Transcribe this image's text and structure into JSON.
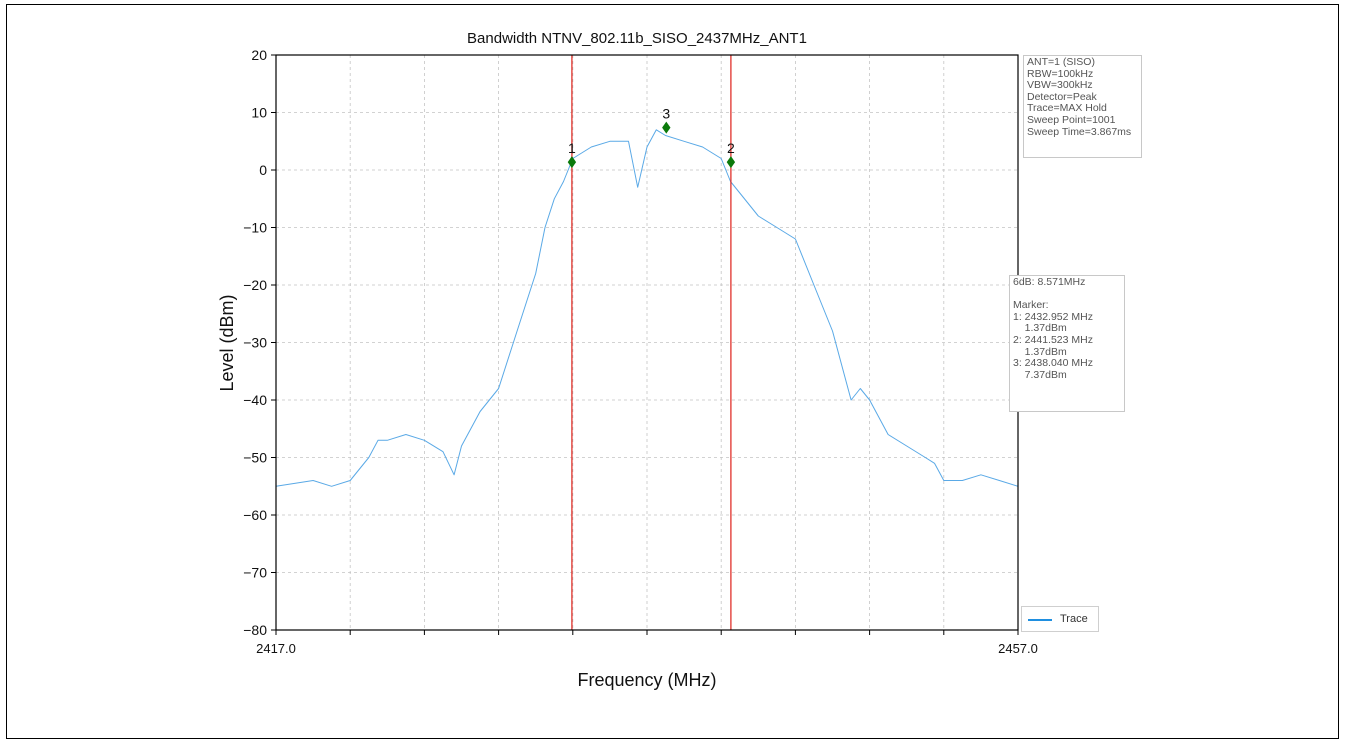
{
  "chart_data": {
    "type": "line",
    "title": "Bandwidth NTNV_802.11b_SISO_2437MHz_ANT1",
    "xlabel": "Frequency (MHz)",
    "ylabel": "Level (dBm)",
    "xlim": [
      2417.0,
      2457.0
    ],
    "ylim": [
      -80,
      20
    ],
    "x_tick_labels": [
      "2417.0",
      "2457.0"
    ],
    "y_ticks": [
      20,
      10,
      0,
      -10,
      -20,
      -30,
      -40,
      -50,
      -60,
      -70,
      -80
    ],
    "y_tick_labels": [
      "20",
      "10",
      "0",
      "−10",
      "−20",
      "−30",
      "−40",
      "−50",
      "−60",
      "−70",
      "−80"
    ],
    "grid": true,
    "legend_position": "bottom-right",
    "series": [
      {
        "name": "Trace",
        "color": "#5aa9e6",
        "x": [
          2417.0,
          2418.0,
          2419.0,
          2420.0,
          2421.0,
          2422.0,
          2422.5,
          2423.0,
          2424.0,
          2425.0,
          2426.0,
          2426.6,
          2427.0,
          2428.0,
          2429.0,
          2430.0,
          2431.0,
          2431.5,
          2432.0,
          2432.5,
          2433.0,
          2434.0,
          2435.0,
          2436.0,
          2436.5,
          2437.0,
          2437.5,
          2438.0,
          2439.0,
          2440.0,
          2441.0,
          2441.5,
          2442.0,
          2443.0,
          2444.0,
          2445.0,
          2446.0,
          2447.0,
          2448.0,
          2448.5,
          2449.0,
          2450.0,
          2451.0,
          2452.0,
          2452.5,
          2453.0,
          2454.0,
          2455.0,
          2456.0,
          2457.0
        ],
        "y": [
          -55,
          -54.5,
          -54,
          -55,
          -54,
          -50,
          -47,
          -47,
          -46,
          -47,
          -49,
          -53,
          -48,
          -42,
          -38,
          -28,
          -18,
          -10,
          -5,
          -2,
          2,
          4,
          5,
          5,
          -3,
          4,
          7,
          6,
          5,
          4,
          2,
          -2,
          -4,
          -8,
          -10,
          -12,
          -20,
          -28,
          -40,
          -38,
          -40,
          -46,
          -48,
          -50,
          -51,
          -54,
          -54,
          -53,
          -54,
          -55
        ]
      }
    ],
    "markers": [
      {
        "label": "1",
        "x": 2432.952,
        "y": 1.37
      },
      {
        "label": "2",
        "x": 2441.523,
        "y": 1.37
      },
      {
        "label": "3",
        "x": 2438.04,
        "y": 7.37
      }
    ],
    "marker_color": "#0b7a0b",
    "vlines": [
      2432.952,
      2441.523
    ],
    "vline_color": "#e0312b"
  },
  "settings_text": [
    "ANT=1 (SISO)",
    "RBW=100kHz",
    "VBW=300kHz",
    "Detector=Peak",
    "Trace=MAX Hold",
    "Sweep Point=1001",
    "Sweep Time=3.867ms"
  ],
  "marker_text": [
    "6dB: 8.571MHz",
    "",
    "Marker:",
    "1: 2432.952 MHz",
    "    1.37dBm",
    "2: 2441.523 MHz",
    "    1.37dBm",
    "3: 2438.040 MHz",
    "    7.37dBm"
  ],
  "legend_label": "Trace",
  "colors": {
    "trace": "#5aa9e6",
    "legend_line": "#1f8fe0"
  }
}
